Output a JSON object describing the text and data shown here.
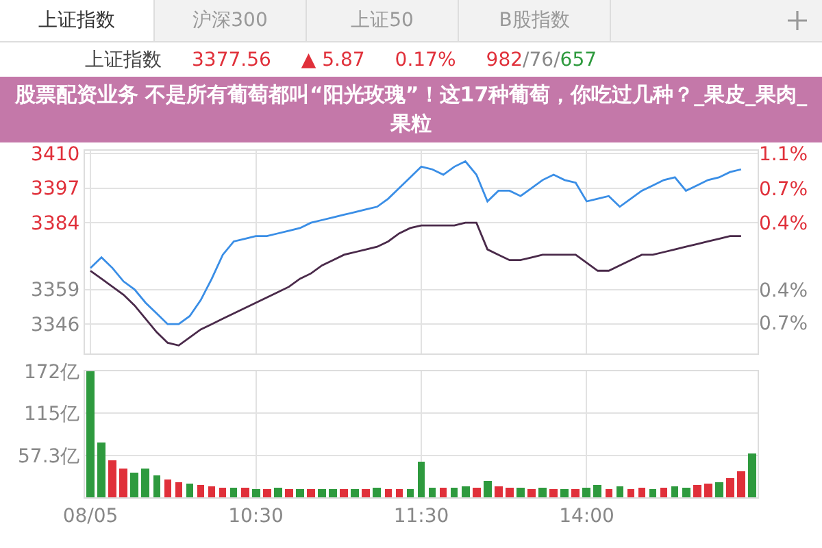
{
  "chart_data": [
    {
      "type": "line",
      "title": "上证指数",
      "annotations": [
        "上证指数",
        "沪深300",
        "上证50",
        "B股指数",
        "3377.56",
        "▲ 5.87",
        "0.17%",
        "982/76/657",
        "股票配资业务 不是所有葡萄都叫“阳光玫瑰”！这17种葡萄，你吃过几种？_果皮_果肉_果粒"
      ],
      "categories": [
        null,
        null,
        null,
        null,
        null,
        null,
        null,
        null,
        null,
        null,
        null,
        null,
        null,
        null,
        null,
        null,
        null,
        null,
        null,
        null,
        null,
        null,
        null,
        null,
        null,
        null,
        null,
        null,
        null,
        null,
        null,
        null,
        null,
        null,
        null,
        null,
        null,
        null,
        null,
        null,
        null,
        null,
        null,
        null,
        null,
        null,
        null,
        null,
        null,
        null,
        null,
        null,
        null,
        null,
        null,
        null,
        null,
        null,
        null,
        null,
        null
      ],
      "series": [
        {
          "color": "#3a8ee6",
          "values": [
            3367,
            3371,
            3367,
            3362,
            3359,
            3354,
            3350,
            3346,
            3346,
            3349,
            3355,
            3363,
            3372,
            3377,
            3378,
            3379,
            3379,
            3380,
            3381,
            3382,
            3384,
            3385,
            3386,
            3387,
            3388,
            3389,
            3390,
            3393,
            3397,
            3401,
            3405,
            3404,
            3402,
            3405,
            3407,
            3402,
            3392,
            3396,
            3396,
            3394,
            3397,
            3400,
            3402,
            3400,
            3399,
            3392,
            3393,
            3394,
            3390,
            3393,
            3396,
            3398,
            3400,
            3401,
            3396,
            3398,
            3400,
            3401,
            3403,
            3404,
            null
          ]
        },
        {
          "color": "#4a2a4a",
          "values": [
            3366,
            3363,
            3360,
            3357,
            3353,
            3348,
            3343,
            3339,
            3338,
            3341,
            3344,
            3346,
            3348,
            3350,
            3352,
            3354,
            3356,
            3358,
            3360,
            3363,
            3365,
            3368,
            3370,
            3372,
            3373,
            3374,
            3375,
            3377,
            3380,
            3382,
            3383,
            3383,
            3383,
            3383,
            3384,
            3384,
            3374,
            3372,
            3370,
            3370,
            3371,
            3372,
            3372,
            3372,
            3372,
            3369,
            3366,
            3366,
            3368,
            3370,
            3372,
            3372,
            3373,
            3374,
            3375,
            3376,
            3377,
            3378,
            3379,
            3379,
            null
          ]
        }
      ],
      "ylim": [
        3335,
        3411
      ],
      "yticks": [
        3410,
        3397,
        3384,
        3359,
        3346
      ],
      "y2lim": [
        -1.09,
        1.17
      ],
      "y2ticks": [
        {
          "value": 1.14,
          "label": "1.1%"
        },
        {
          "value": 0.75,
          "label": "0.7%"
        },
        {
          "value": 0.37,
          "label": "0.4%"
        },
        {
          "value": -0.38,
          "label": "0.4%"
        },
        {
          "value": -0.75,
          "label": "0.7%"
        }
      ],
      "grid": true,
      "tick_labels": "y",
      "marker": "none",
      "line_style": "solid"
    },
    {
      "type": "bar",
      "categories": [
        "08/05",
        null,
        null,
        null,
        null,
        null,
        null,
        null,
        null,
        null,
        null,
        null,
        null,
        null,
        null,
        "10:30",
        null,
        null,
        null,
        null,
        null,
        null,
        null,
        null,
        null,
        null,
        null,
        null,
        null,
        null,
        "11:30",
        null,
        null,
        null,
        null,
        null,
        null,
        null,
        null,
        null,
        null,
        null,
        null,
        null,
        null,
        "14:00",
        null,
        null,
        null,
        null,
        null,
        null,
        null,
        null,
        null,
        null,
        null,
        null,
        null,
        null,
        null
      ],
      "values": [
        172,
        75,
        50,
        40,
        34,
        39,
        30,
        24,
        21,
        18,
        16,
        15,
        14,
        13,
        14,
        12,
        12,
        13,
        12,
        11,
        12,
        11,
        12,
        12,
        11,
        12,
        13,
        12,
        11,
        12,
        49,
        14,
        13,
        14,
        15,
        14,
        22,
        15,
        13,
        14,
        12,
        13,
        12,
        11,
        12,
        13,
        16,
        12,
        15,
        12,
        13,
        12,
        14,
        15,
        13,
        16,
        18,
        20,
        26,
        36,
        60
      ],
      "colors": [
        "#2e9a3e",
        "#2e9a3e",
        "#e0303a",
        "#e0303a",
        "#2e9a3e",
        "#2e9a3e",
        "#2e9a3e",
        "#e0303a",
        "#e0303a",
        "#2e9a3e",
        "#e0303a",
        "#e0303a",
        "#e0303a",
        "#2e9a3e",
        "#e0303a",
        "#2e9a3e",
        "#e0303a",
        "#2e9a3e",
        "#e0303a",
        "#2e9a3e",
        "#e0303a",
        "#2e9a3e",
        "#2e9a3e",
        "#e0303a",
        "#2e9a3e",
        "#e0303a",
        "#2e9a3e",
        "#e0303a",
        "#e0303a",
        "#2e9a3e",
        "#2e9a3e",
        "#2e9a3e",
        "#e0303a",
        "#2e9a3e",
        "#2e9a3e",
        "#e0303a",
        "#2e9a3e",
        "#e0303a",
        "#e0303a",
        "#2e9a3e",
        "#e0303a",
        "#2e9a3e",
        "#e0303a",
        "#2e9a3e",
        "#e0303a",
        "#2e9a3e",
        "#2e9a3e",
        "#e0303a",
        "#2e9a3e",
        "#e0303a",
        "#e0303a",
        "#2e9a3e",
        "#e0303a",
        "#2e9a3e",
        "#2e9a3e",
        "#e0303a",
        "#e0303a",
        "#2e9a3e",
        "#e0303a",
        "#e0303a",
        "#2e9a3e"
      ],
      "ylim": [
        0,
        172
      ],
      "yticks": [
        {
          "value": 57.3,
          "label": "57.3亿"
        },
        {
          "value": 115,
          "label": "115亿"
        },
        {
          "value": 172,
          "label": "172亿"
        }
      ],
      "grid": true
    }
  ]
}
